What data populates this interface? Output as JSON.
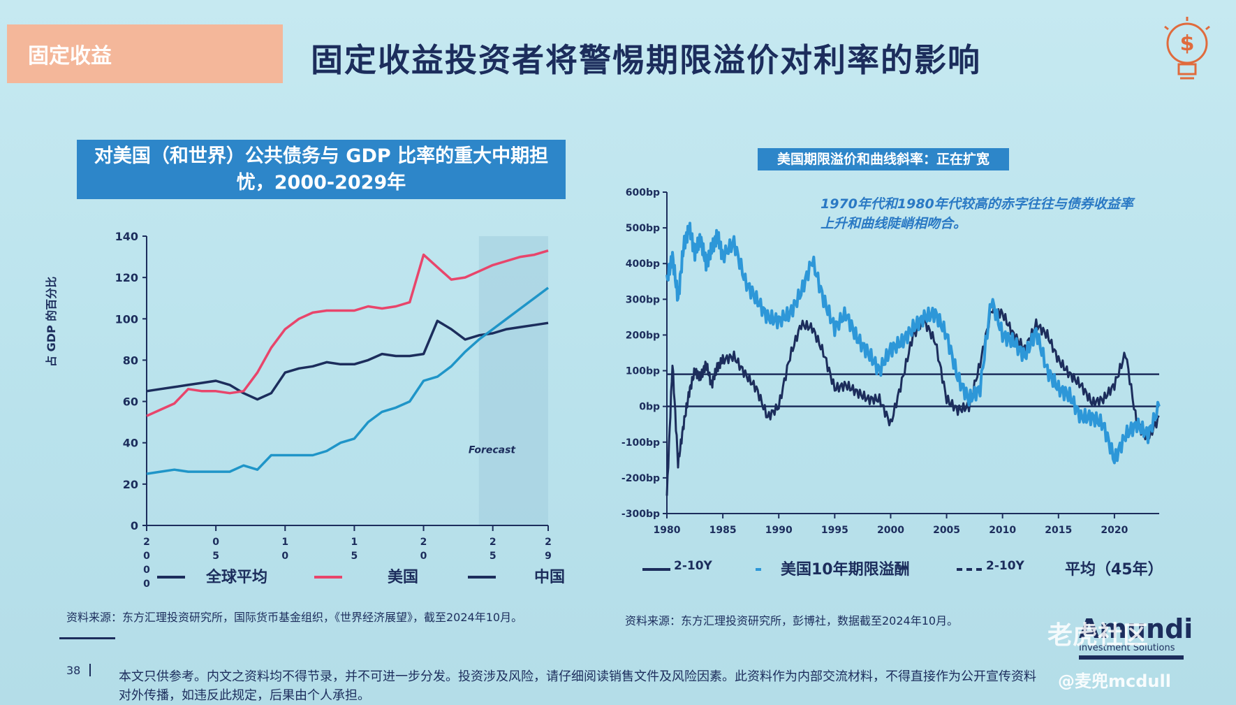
{
  "slide": {
    "tag": "固定收益",
    "title": "固定收益投资者将警惕期限溢价对利率的影响",
    "page_number": "38",
    "disclaimer": "本文只供参考。内文之资料均不得节录，并不可进一步分发。投资涉及风险，请仔细阅读销售文件及风险因素。此资料作为内部交流材料，不得直接作为公开宣传资料对外传播，如违反此规定，后果由个人承担。",
    "brand_name": "Amundi",
    "brand_sub": "Investment Solutions",
    "watermark": "老虎社区",
    "watermark_user": "@麦兜mcdull"
  },
  "colors": {
    "navy": "#1c2d5c",
    "pink": "#e8456b",
    "teal": "#1f95c8",
    "lightblue": "#2d97d8",
    "header_blue": "#2d86c9",
    "tag_orange": "#f4b79a"
  },
  "chart_data": [
    {
      "type": "line",
      "title": "对美国（和世界）公共债务与 GDP 比率的重大中期担忧，2000-2029年",
      "ylabel": "占 GDP 的百分比",
      "ylim": [
        0,
        140
      ],
      "yticks": [
        "0",
        "20",
        "40",
        "60",
        "80",
        "100",
        "120",
        "140"
      ],
      "xlim": [
        2000,
        2029
      ],
      "xticks": [
        {
          "x": 2000,
          "label": "2 0 0 0"
        },
        {
          "x": 2005,
          "label": "0 5"
        },
        {
          "x": 2010,
          "label": "1 0"
        },
        {
          "x": 2015,
          "label": "1 5"
        },
        {
          "x": 2020,
          "label": "2 0"
        },
        {
          "x": 2025,
          "label": "2 5"
        },
        {
          "x": 2029,
          "label": "2 9"
        }
      ],
      "annotation": "Forecast",
      "forecast_start": 2024,
      "series": [
        {
          "name": "全球平均",
          "x": [
            2000,
            2001,
            2002,
            2003,
            2004,
            2005,
            2006,
            2007,
            2008,
            2009,
            2010,
            2011,
            2012,
            2013,
            2014,
            2015,
            2016,
            2017,
            2018,
            2019,
            2020,
            2021,
            2022,
            2023,
            2024,
            2025,
            2026,
            2027,
            2028,
            2029
          ],
          "values": [
            65,
            66,
            67,
            68,
            69,
            70,
            68,
            64,
            61,
            64,
            74,
            76,
            77,
            79,
            78,
            78,
            80,
            83,
            82,
            82,
            83,
            99,
            95,
            90,
            92,
            93,
            95,
            96,
            97,
            98
          ]
        },
        {
          "name": "美国",
          "x": [
            2000,
            2001,
            2002,
            2003,
            2004,
            2005,
            2006,
            2007,
            2008,
            2009,
            2010,
            2011,
            2012,
            2013,
            2014,
            2015,
            2016,
            2017,
            2018,
            2019,
            2020,
            2021,
            2022,
            2023,
            2024,
            2025,
            2026,
            2027,
            2028,
            2029
          ],
          "values": [
            53,
            56,
            59,
            66,
            65,
            65,
            64,
            65,
            74,
            86,
            95,
            100,
            103,
            104,
            104,
            104,
            106,
            105,
            106,
            108,
            131,
            125,
            119,
            120,
            123,
            126,
            128,
            130,
            131,
            133
          ]
        },
        {
          "name": "中国",
          "x": [
            2000,
            2001,
            2002,
            2003,
            2004,
            2005,
            2006,
            2007,
            2008,
            2009,
            2010,
            2011,
            2012,
            2013,
            2014,
            2015,
            2016,
            2017,
            2018,
            2019,
            2020,
            2021,
            2022,
            2023,
            2024,
            2025,
            2026,
            2027,
            2028,
            2029
          ],
          "values": [
            25,
            26,
            27,
            26,
            26,
            26,
            26,
            29,
            27,
            34,
            34,
            34,
            34,
            36,
            40,
            42,
            50,
            55,
            57,
            60,
            70,
            72,
            77,
            84,
            90,
            95,
            100,
            105,
            110,
            115
          ]
        }
      ]
    },
    {
      "type": "line",
      "title": "美国期限溢价和曲线斜率：正在扩宽",
      "annotation": "1970年代和1980年代较高的赤字往往与债券收益率上升和曲线陡峭相吻合。",
      "ylim": [
        -300,
        600
      ],
      "yticks": [
        "-300bp",
        "-200bp",
        "-100bp",
        "0bp",
        "100bp",
        "200bp",
        "300bp",
        "400bp",
        "500bp",
        "600bp"
      ],
      "xlim": [
        1980,
        2024
      ],
      "xticks": [
        "1980",
        "1985",
        "1990",
        "1995",
        "2000",
        "2005",
        "2010",
        "2015",
        "2020"
      ],
      "average_line": 90,
      "series": [
        {
          "name": "2-10Y",
          "x": [
            1980,
            1980.5,
            1981,
            1981.5,
            1982,
            1982.5,
            1983,
            1983.5,
            1984,
            1984.5,
            1985,
            1986,
            1987,
            1988,
            1989,
            1990,
            1991,
            1992,
            1993,
            1994,
            1995,
            1996,
            1997,
            1998,
            1999,
            2000,
            2001,
            2002,
            2003,
            2004,
            2005,
            2006,
            2007,
            2008,
            2009,
            2010,
            2011,
            2012,
            2013,
            2014,
            2015,
            2016,
            2017,
            2018,
            2019,
            2020,
            2021,
            2022,
            2023,
            2024
          ],
          "values": [
            -250,
            120,
            -160,
            -50,
            40,
            100,
            80,
            120,
            60,
            110,
            130,
            140,
            90,
            50,
            -30,
            0,
            140,
            230,
            220,
            150,
            50,
            60,
            40,
            20,
            20,
            -50,
            70,
            200,
            240,
            180,
            20,
            -10,
            0,
            120,
            270,
            260,
            200,
            160,
            230,
            200,
            130,
            90,
            60,
            10,
            20,
            60,
            150,
            -50,
            -90,
            -30
          ]
        },
        {
          "name": "美国10年期限溢酬",
          "x": [
            1980,
            1980.5,
            1981,
            1981.5,
            1982,
            1982.5,
            1983,
            1983.5,
            1984,
            1984.5,
            1985,
            1986,
            1987,
            1988,
            1989,
            1990,
            1991,
            1992,
            1993,
            1994,
            1995,
            1996,
            1997,
            1998,
            1999,
            2000,
            2001,
            2002,
            2003,
            2004,
            2005,
            2006,
            2007,
            2008,
            2009,
            2010,
            2011,
            2012,
            2013,
            2014,
            2015,
            2016,
            2017,
            2018,
            2019,
            2020,
            2021,
            2022,
            2023,
            2024
          ],
          "values": [
            350,
            420,
            300,
            450,
            500,
            430,
            470,
            400,
            440,
            480,
            420,
            460,
            350,
            300,
            250,
            240,
            260,
            320,
            410,
            300,
            220,
            260,
            190,
            150,
            100,
            160,
            180,
            220,
            250,
            260,
            200,
            80,
            20,
            50,
            300,
            200,
            180,
            140,
            210,
            100,
            50,
            30,
            -30,
            -30,
            -50,
            -150,
            -80,
            -50,
            -80,
            0
          ]
        }
      ],
      "legend": [
        {
          "name": "2-10Y",
          "style": "solid"
        },
        {
          "name": "美国10年期限溢酬",
          "style": "dot"
        },
        {
          "name": "2-10Y",
          "style": "dashed"
        },
        {
          "name": "平均（45年）",
          "style": "text"
        }
      ]
    }
  ],
  "sources": {
    "left": "资料来源：东方汇理投资研究所，国际货币基金组织，《世界经济展望》，截至2024年10月。",
    "right": "资料来源：东方汇理投资研究所，彭博社，数据截至2024年10月。"
  }
}
